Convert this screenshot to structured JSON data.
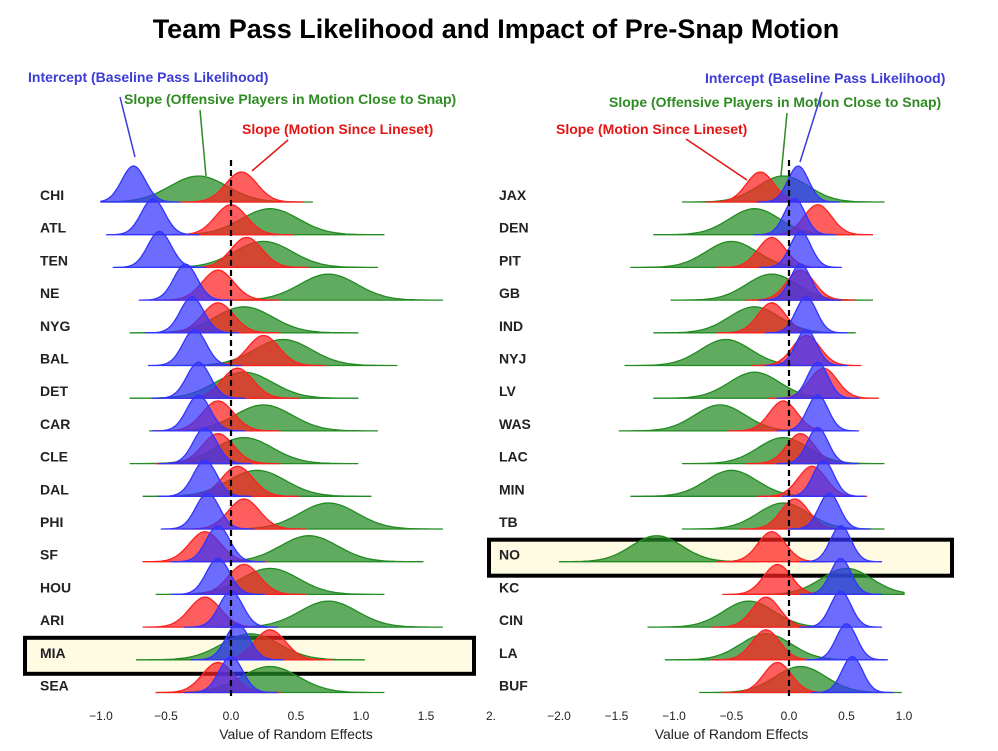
{
  "figure_title": "Team Pass Likelihood and Impact of Pre-Snap Motion",
  "colors": {
    "intercept": "#3333ff",
    "slope_close_to_snap": "#228b22",
    "slope_since_lineset": "#ff2020",
    "intercept_text": "#3b3bd6",
    "close_text": "#2e8b22",
    "lineset_text": "#e41414",
    "highlight_fill": "#fffbe3",
    "highlight_stroke": "#000000"
  },
  "annotations": {
    "intercept": "Intercept (Baseline Pass Likelihood)",
    "slope_close": "Slope (Offensive Players in Motion Close to Snap)",
    "slope_lineset": "Slope (Motion Since Lineset)"
  },
  "chart_data": [
    {
      "type": "ridgeline",
      "xlabel": "Value of Random Effects",
      "xlim": [
        -1.0,
        2.0
      ],
      "xticks": [
        "−1.0",
        "−0.5",
        "0.0",
        "0.5",
        "1.0",
        "1.5",
        "2."
      ],
      "reference_line": 0.0,
      "highlight": "MIA",
      "series_legend": [
        "Intercept (Baseline Pass Likelihood)",
        "Slope (Offensive Players in Motion Close to Snap)",
        "Slope (Motion Since Lineset)"
      ],
      "teams": [
        {
          "team": "CHI",
          "intercept": -0.75,
          "slope_close": -0.25,
          "slope_lineset": 0.08
        },
        {
          "team": "ATL",
          "intercept": -0.6,
          "slope_close": 0.3,
          "slope_lineset": 0.0
        },
        {
          "team": "TEN",
          "intercept": -0.55,
          "slope_close": 0.25,
          "slope_lineset": 0.12
        },
        {
          "team": "NE",
          "intercept": -0.35,
          "slope_close": 0.75,
          "slope_lineset": -0.1
        },
        {
          "team": "NYG",
          "intercept": -0.3,
          "slope_close": 0.1,
          "slope_lineset": -0.1
        },
        {
          "team": "BAL",
          "intercept": -0.28,
          "slope_close": 0.4,
          "slope_lineset": 0.25
        },
        {
          "team": "DET",
          "intercept": -0.25,
          "slope_close": 0.1,
          "slope_lineset": 0.05
        },
        {
          "team": "CAR",
          "intercept": -0.25,
          "slope_close": 0.25,
          "slope_lineset": -0.1
        },
        {
          "team": "CLE",
          "intercept": -0.2,
          "slope_close": 0.1,
          "slope_lineset": -0.1
        },
        {
          "team": "DAL",
          "intercept": -0.2,
          "slope_close": 0.2,
          "slope_lineset": 0.05
        },
        {
          "team": "PHI",
          "intercept": -0.18,
          "slope_close": 0.75,
          "slope_lineset": 0.1
        },
        {
          "team": "SF",
          "intercept": -0.1,
          "slope_close": 0.6,
          "slope_lineset": -0.2
        },
        {
          "team": "HOU",
          "intercept": -0.1,
          "slope_close": 0.3,
          "slope_lineset": 0.1
        },
        {
          "team": "ARI",
          "intercept": 0.0,
          "slope_close": 0.75,
          "slope_lineset": -0.2
        },
        {
          "team": "MIA",
          "intercept": 0.05,
          "slope_close": 0.15,
          "slope_lineset": 0.3
        },
        {
          "team": "SEA",
          "intercept": 0.0,
          "slope_close": 0.3,
          "slope_lineset": -0.1
        }
      ]
    },
    {
      "type": "ridgeline",
      "xlabel": "Value of Random Effects",
      "xlim": [
        -2.0,
        1.0
      ],
      "xticks": [
        "−2.0",
        "−1.5",
        "−1.0",
        "−0.5",
        "0.0",
        "0.5",
        "1.0"
      ],
      "reference_line": 0.0,
      "highlight": "NO",
      "series_legend": [
        "Intercept (Baseline Pass Likelihood)",
        "Slope (Offensive Players in Motion Close to Snap)",
        "Slope (Motion Since Lineset)"
      ],
      "teams": [
        {
          "team": "JAX",
          "intercept": 0.08,
          "slope_close": -0.05,
          "slope_lineset": -0.25
        },
        {
          "team": "DEN",
          "intercept": 0.05,
          "slope_close": -0.3,
          "slope_lineset": 0.25
        },
        {
          "team": "PIT",
          "intercept": 0.1,
          "slope_close": -0.5,
          "slope_lineset": -0.15
        },
        {
          "team": "GB",
          "intercept": 0.1,
          "slope_close": -0.15,
          "slope_lineset": 0.1
        },
        {
          "team": "IND",
          "intercept": 0.15,
          "slope_close": -0.3,
          "slope_lineset": -0.15
        },
        {
          "team": "NYJ",
          "intercept": 0.15,
          "slope_close": -0.55,
          "slope_lineset": 0.15
        },
        {
          "team": "LV",
          "intercept": 0.25,
          "slope_close": -0.3,
          "slope_lineset": 0.3
        },
        {
          "team": "WAS",
          "intercept": 0.25,
          "slope_close": -0.6,
          "slope_lineset": -0.05
        },
        {
          "team": "LAC",
          "intercept": 0.25,
          "slope_close": -0.05,
          "slope_lineset": 0.1
        },
        {
          "team": "MIN",
          "intercept": 0.3,
          "slope_close": -0.5,
          "slope_lineset": 0.2
        },
        {
          "team": "TB",
          "intercept": 0.35,
          "slope_close": -0.05,
          "slope_lineset": 0.05
        },
        {
          "team": "NO",
          "intercept": 0.45,
          "slope_close": -1.15,
          "slope_lineset": -0.15
        },
        {
          "team": "KC",
          "intercept": 0.45,
          "slope_close": 0.5,
          "slope_lineset": -0.1
        },
        {
          "team": "CIN",
          "intercept": 0.45,
          "slope_close": -0.35,
          "slope_lineset": -0.2
        },
        {
          "team": "LA",
          "intercept": 0.5,
          "slope_close": -0.2,
          "slope_lineset": -0.2
        },
        {
          "team": "BUF",
          "intercept": 0.55,
          "slope_close": 0.1,
          "slope_lineset": -0.1
        }
      ]
    }
  ]
}
